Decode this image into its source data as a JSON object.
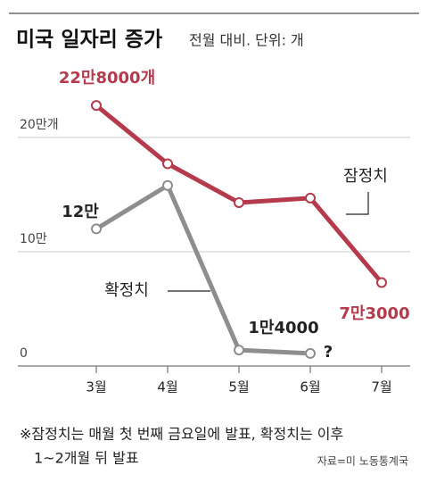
{
  "chart_data": {
    "type": "line",
    "title": "미국 일자리 증가",
    "subtitle": "전월 대비. 단위: 개",
    "categories": [
      "3월",
      "4월",
      "5월",
      "6월",
      "7월"
    ],
    "series": [
      {
        "name": "잠정치",
        "color": "#b43a4c",
        "values": [
          228000,
          177000,
          143000,
          147000,
          73000
        ],
        "value_labels": [
          "22만8000개",
          null,
          null,
          null,
          "7만3000"
        ]
      },
      {
        "name": "확정치",
        "color": "#8e8e8e",
        "values": [
          120000,
          158000,
          14000,
          11000,
          null
        ],
        "value_labels": [
          "12만",
          null,
          "1만4000",
          null,
          null
        ]
      }
    ],
    "annotation": "?",
    "ylim": [
      0,
      250000
    ],
    "yticks": [
      0,
      {
        "value": 100000,
        "label": "10만"
      },
      {
        "value": 200000,
        "label": "20만개"
      }
    ],
    "grid": true,
    "footnote": [
      "※잠정치는 매월 첫 번째 금요일에 발표, 확정치는 이후",
      "1~2개월 뒤 발표"
    ],
    "source": "자료=미 노동통계국"
  }
}
